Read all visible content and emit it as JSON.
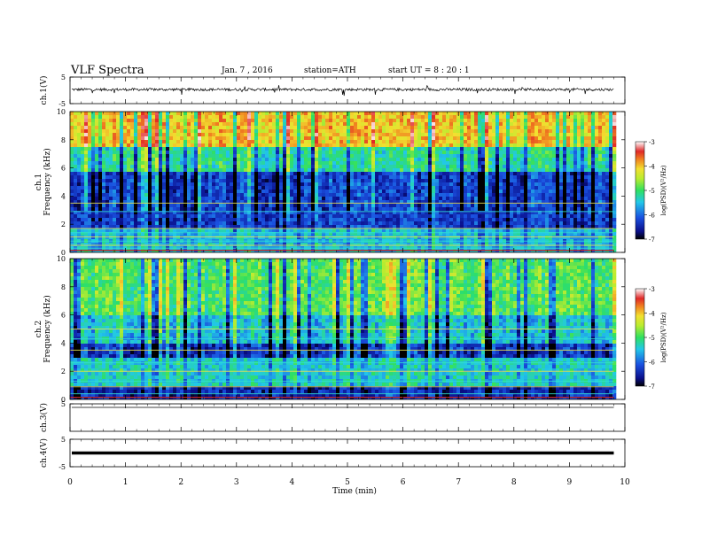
{
  "header": {
    "title": "VLF  Spectra",
    "date": "Jan.  7  ,  2016",
    "station": "station=ATH",
    "start": "start  UT  =   8  : 20 : 1"
  },
  "chart_data": [
    {
      "type": "line",
      "name": "ch1-waveform",
      "ylabel": "ch.1(V)",
      "ylim": [
        -5,
        5
      ],
      "y_ticks": [
        "5",
        "-5"
      ],
      "xlim": [
        0,
        10
      ],
      "series": [
        {
          "trace": "dense noisy waveform, baseline near 0.3 V with spikes to about +/-2 V"
        }
      ]
    },
    {
      "type": "heatmap",
      "name": "ch1-spectrogram",
      "ylabel": "ch.1\nFrequency  (kHz)",
      "ylabel_parts": [
        "ch.1",
        "Frequency  (kHz)"
      ],
      "ylim": [
        0,
        10
      ],
      "y_ticks": [
        "0",
        "2",
        "4",
        "6",
        "8",
        "10"
      ],
      "xlim": [
        0,
        10
      ],
      "data_end_min": 9.8,
      "colorbar": {
        "label": "log(PSD)(V²/Hz)",
        "ticks": [
          "-3",
          "-4",
          "-5",
          "-6",
          "-7"
        ],
        "range": [
          -7,
          -3
        ]
      },
      "bands": [
        {
          "f_low": 0.0,
          "f_high": 1.8,
          "level": -5.6
        },
        {
          "f_low": 1.8,
          "f_high": 5.8,
          "level": -6.3
        },
        {
          "f_low": 5.8,
          "f_high": 7.5,
          "level": -5.3
        },
        {
          "f_low": 7.5,
          "f_high": 10.0,
          "level": -4.1
        }
      ],
      "tones_khz": [
        0.3,
        0.5,
        0.8,
        1.1,
        1.4,
        1.7,
        2.9,
        3.5
      ]
    },
    {
      "type": "heatmap",
      "name": "ch2-spectrogram",
      "ylabel": "ch.2\nFrequency  (kHz)",
      "ylabel_parts": [
        "ch.2",
        "Frequency  (kHz)"
      ],
      "ylim": [
        0,
        10
      ],
      "y_ticks": [
        "0",
        "2",
        "4",
        "6",
        "8",
        "10"
      ],
      "xlim": [
        0,
        10
      ],
      "data_end_min": 9.8,
      "colorbar": {
        "label": "log(PSD)(V²/Hz)",
        "ticks": [
          "-3",
          "-4",
          "-5",
          "-6",
          "-7"
        ],
        "range": [
          -7,
          -3
        ]
      },
      "bands": [
        {
          "f_low": 0.0,
          "f_high": 1.0,
          "level": -6.5
        },
        {
          "f_low": 1.0,
          "f_high": 3.0,
          "level": -5.5
        },
        {
          "f_low": 3.0,
          "f_high": 4.0,
          "level": -6.4
        },
        {
          "f_low": 4.0,
          "f_high": 6.0,
          "level": -5.6
        },
        {
          "f_low": 6.0,
          "f_high": 10.0,
          "level": -5.0
        }
      ],
      "tones_khz": [
        0.4,
        0.9,
        1.3,
        2.0,
        2.6,
        3.5,
        4.3,
        5.0
      ]
    },
    {
      "type": "line",
      "name": "ch3-waveform",
      "ylabel": "ch.3(V)",
      "ylim": [
        -5,
        5
      ],
      "y_ticks": [
        "5"
      ],
      "xlim": [
        0,
        10
      ],
      "series": [
        {
          "trace": "flat line near +5 V"
        }
      ]
    },
    {
      "type": "line",
      "name": "ch4-waveform",
      "ylabel": "ch.4(V)",
      "ylim": [
        -5,
        5
      ],
      "y_ticks": [
        "5",
        "-5"
      ],
      "xlim": [
        0,
        10
      ],
      "series": [
        {
          "trace": "thick flat line near 0 V"
        }
      ]
    }
  ],
  "x_axis": {
    "label": "Time  (min)",
    "ticks": [
      "0",
      "1",
      "2",
      "3",
      "4",
      "5",
      "6",
      "7",
      "8",
      "9",
      "10"
    ]
  },
  "colors": {
    "frame": "#000000",
    "trace": "#000000",
    "colormap": [
      "#0a0f6b",
      "#0a1ea0",
      "#1a4fd8",
      "#27b6e0",
      "#2fe27a",
      "#9ee83a",
      "#f0e030",
      "#f09a28",
      "#e02a20",
      "#ffffff"
    ]
  }
}
